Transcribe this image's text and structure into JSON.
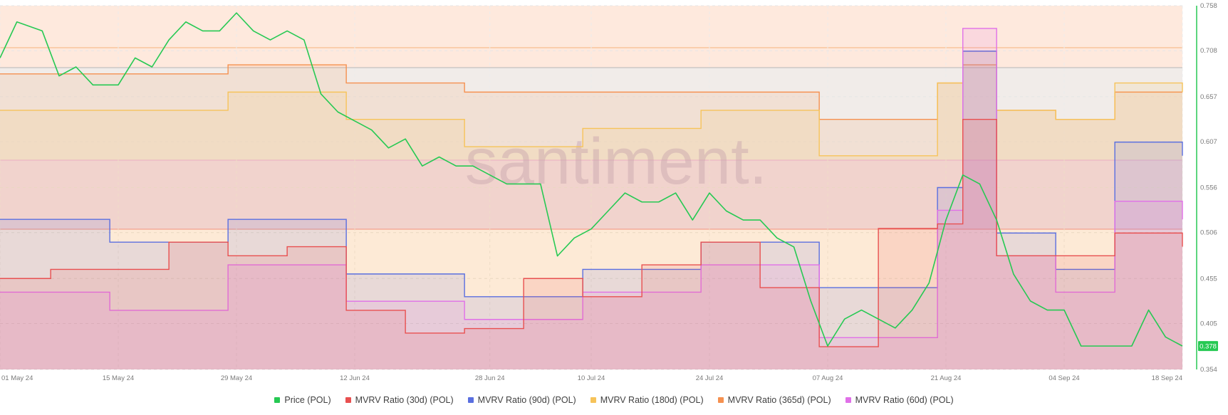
{
  "watermark": "santiment.",
  "legend": [
    {
      "label": "Price (POL)",
      "color": "#26c953"
    },
    {
      "label": "MVRV Ratio (30d) (POL)",
      "color": "#e85050"
    },
    {
      "label": "MVRV Ratio (90d) (POL)",
      "color": "#5a6fe0"
    },
    {
      "label": "MVRV Ratio (180d) (POL)",
      "color": "#f6c35a"
    },
    {
      "label": "MVRV Ratio (365d) (POL)",
      "color": "#f59150"
    },
    {
      "label": "MVRV Ratio (60d) (POL)",
      "color": "#e070e8"
    }
  ],
  "price_badge": "0.378",
  "chart_data": {
    "type": "line",
    "x_ticks": [
      "01 May 24",
      "15 May 24",
      "29 May 24",
      "12 Jun 24",
      "28 Jun 24",
      "10 Jul 24",
      "24 Jul 24",
      "07 Aug 24",
      "21 Aug 24",
      "04 Sep 24",
      "18 Sep 24"
    ],
    "y_ticks": [
      "0.758",
      "0.708",
      "0.657",
      "0.607",
      "0.556",
      "0.506",
      "0.455",
      "0.405",
      "0.354"
    ],
    "ylim": [
      0.354,
      0.758
    ],
    "x_range": [
      "2024-05-01",
      "2024-09-18"
    ],
    "mvrv_reference_lines": [
      {
        "series": "MVRV Ratio (365d) (POL)",
        "color": "#f59150"
      },
      {
        "series": "MVRV Ratio (90d) (POL)",
        "color": "#5a6fe0"
      },
      {
        "series": "MVRV Ratio (30d) (POL)",
        "color": "#e85050"
      }
    ],
    "series": [
      {
        "name": "Price (POL)",
        "color": "#26c953",
        "x": [
          "2024-05-01",
          "2024-05-03",
          "2024-05-06",
          "2024-05-08",
          "2024-05-10",
          "2024-05-12",
          "2024-05-15",
          "2024-05-17",
          "2024-05-19",
          "2024-05-21",
          "2024-05-23",
          "2024-05-25",
          "2024-05-27",
          "2024-05-29",
          "2024-05-31",
          "2024-06-02",
          "2024-06-04",
          "2024-06-06",
          "2024-06-08",
          "2024-06-10",
          "2024-06-12",
          "2024-06-14",
          "2024-06-16",
          "2024-06-18",
          "2024-06-20",
          "2024-06-22",
          "2024-06-24",
          "2024-06-26",
          "2024-06-28",
          "2024-06-30",
          "2024-07-02",
          "2024-07-04",
          "2024-07-06",
          "2024-07-08",
          "2024-07-10",
          "2024-07-12",
          "2024-07-14",
          "2024-07-16",
          "2024-07-18",
          "2024-07-20",
          "2024-07-22",
          "2024-07-24",
          "2024-07-26",
          "2024-07-28",
          "2024-07-30",
          "2024-08-01",
          "2024-08-03",
          "2024-08-05",
          "2024-08-07",
          "2024-08-09",
          "2024-08-11",
          "2024-08-13",
          "2024-08-15",
          "2024-08-17",
          "2024-08-19",
          "2024-08-21",
          "2024-08-23",
          "2024-08-25",
          "2024-08-27",
          "2024-08-29",
          "2024-08-31",
          "2024-09-02",
          "2024-09-04",
          "2024-09-06",
          "2024-09-08",
          "2024-09-10",
          "2024-09-12",
          "2024-09-14",
          "2024-09-16",
          "2024-09-18"
        ],
        "values": [
          0.7,
          0.74,
          0.73,
          0.68,
          0.69,
          0.67,
          0.67,
          0.7,
          0.69,
          0.72,
          0.74,
          0.73,
          0.73,
          0.75,
          0.73,
          0.72,
          0.73,
          0.72,
          0.66,
          0.64,
          0.63,
          0.62,
          0.6,
          0.61,
          0.58,
          0.59,
          0.58,
          0.58,
          0.57,
          0.56,
          0.56,
          0.56,
          0.48,
          0.5,
          0.51,
          0.53,
          0.55,
          0.54,
          0.54,
          0.55,
          0.52,
          0.55,
          0.53,
          0.52,
          0.52,
          0.5,
          0.49,
          0.43,
          0.38,
          0.41,
          0.42,
          0.41,
          0.4,
          0.42,
          0.45,
          0.52,
          0.57,
          0.56,
          0.52,
          0.46,
          0.43,
          0.42,
          0.42,
          0.38,
          0.38,
          0.38,
          0.38,
          0.42,
          0.39,
          0.38
        ]
      },
      {
        "name": "MVRV Ratio (30d) (POL)",
        "color": "#e85050",
        "x": [
          "2024-05-01",
          "2024-05-07",
          "2024-05-14",
          "2024-05-21",
          "2024-05-28",
          "2024-06-04",
          "2024-06-11",
          "2024-06-18",
          "2024-06-25",
          "2024-07-02",
          "2024-07-09",
          "2024-07-16",
          "2024-07-23",
          "2024-07-30",
          "2024-08-06",
          "2024-08-13",
          "2024-08-20",
          "2024-08-23",
          "2024-08-27",
          "2024-09-03",
          "2024-09-10",
          "2024-09-18"
        ],
        "values": [
          0.95,
          0.97,
          0.97,
          1.03,
          1.0,
          1.02,
          0.88,
          0.83,
          0.84,
          0.95,
          0.91,
          0.98,
          1.03,
          0.93,
          0.8,
          1.06,
          1.07,
          1.3,
          1.0,
          1.0,
          1.05,
          1.02
        ]
      },
      {
        "name": "MVRV Ratio (90d) (POL)",
        "color": "#5a6fe0",
        "x": [
          "2024-05-01",
          "2024-05-14",
          "2024-05-28",
          "2024-06-11",
          "2024-06-25",
          "2024-07-09",
          "2024-07-23",
          "2024-08-06",
          "2024-08-20",
          "2024-08-23",
          "2024-08-27",
          "2024-09-03",
          "2024-09-10",
          "2024-09-18"
        ],
        "values": [
          1.08,
          1.03,
          1.08,
          0.96,
          0.91,
          0.97,
          1.03,
          0.93,
          1.15,
          1.45,
          1.05,
          0.97,
          1.25,
          1.22
        ]
      },
      {
        "name": "MVRV Ratio (180d) (POL)",
        "color": "#f6c35a",
        "x": [
          "2024-05-01",
          "2024-05-14",
          "2024-05-28",
          "2024-06-11",
          "2024-06-25",
          "2024-07-09",
          "2024-07-23",
          "2024-08-06",
          "2024-08-20",
          "2024-08-23",
          "2024-08-27",
          "2024-09-03",
          "2024-09-10",
          "2024-09-18"
        ],
        "values": [
          1.32,
          1.32,
          1.36,
          1.3,
          1.24,
          1.28,
          1.32,
          1.22,
          1.38,
          1.45,
          1.32,
          1.3,
          1.38,
          1.36
        ]
      },
      {
        "name": "MVRV Ratio (365d) (POL)",
        "color": "#f59150",
        "x": [
          "2024-05-01",
          "2024-05-14",
          "2024-05-28",
          "2024-06-11",
          "2024-06-25",
          "2024-07-09",
          "2024-07-23",
          "2024-08-06",
          "2024-08-20",
          "2024-08-23",
          "2024-08-27",
          "2024-09-03",
          "2024-09-10",
          "2024-09-18"
        ],
        "values": [
          1.4,
          1.4,
          1.42,
          1.38,
          1.36,
          1.36,
          1.36,
          1.3,
          1.38,
          1.42,
          1.32,
          1.3,
          1.36,
          1.36
        ]
      },
      {
        "name": "MVRV Ratio (60d) (POL)",
        "color": "#e070e8",
        "x": [
          "2024-05-01",
          "2024-05-14",
          "2024-05-28",
          "2024-06-11",
          "2024-06-25",
          "2024-07-09",
          "2024-07-23",
          "2024-08-06",
          "2024-08-20",
          "2024-08-23",
          "2024-08-27",
          "2024-09-03",
          "2024-09-10",
          "2024-09-18"
        ],
        "values": [
          0.92,
          0.88,
          0.98,
          0.9,
          0.86,
          0.92,
          0.98,
          0.82,
          1.1,
          1.5,
          1.0,
          0.92,
          1.12,
          1.08
        ]
      }
    ]
  }
}
